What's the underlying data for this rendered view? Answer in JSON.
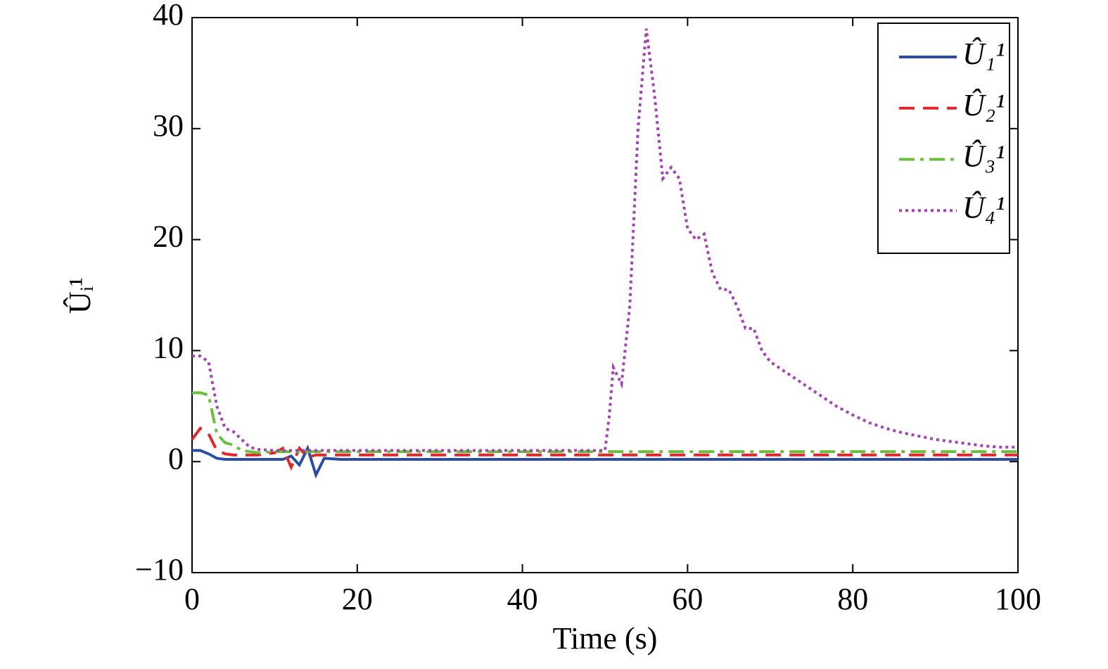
{
  "chart_data": {
    "type": "line",
    "xlabel": "Time (s)",
    "ylabel": "Ûᵢ¹",
    "x": [
      0,
      1,
      2,
      3,
      4,
      5,
      6,
      7,
      8,
      10,
      11,
      12,
      13,
      14,
      15,
      16,
      18,
      20,
      30,
      40,
      50,
      50.5,
      51,
      52,
      53,
      54,
      55,
      56,
      57,
      58,
      59,
      60,
      61,
      62,
      63,
      64,
      65,
      66,
      67,
      68,
      69,
      70,
      72,
      74,
      76,
      78,
      80,
      82,
      84,
      86,
      88,
      90,
      92,
      94,
      96,
      98,
      100
    ],
    "series": [
      {
        "name": "Û₁¹",
        "color": "#2b4ea2",
        "dash": "solid",
        "values": [
          1,
          1,
          0.7,
          0.3,
          0.2,
          0.2,
          0.2,
          0.2,
          0.2,
          0.2,
          0.2,
          0.5,
          -0.3,
          1.2,
          -1.2,
          0.3,
          0.2,
          0.2,
          0.2,
          0.2,
          0.2,
          0.2,
          0.2,
          0.2,
          0.2,
          0.2,
          0.2,
          0.2,
          0.2,
          0.2,
          0.2,
          0.2,
          0.2,
          0.2,
          0.2,
          0.2,
          0.2,
          0.2,
          0.2,
          0.2,
          0.2,
          0.2,
          0.2,
          0.2,
          0.2,
          0.2,
          0.2,
          0.2,
          0.2,
          0.2,
          0.2,
          0.2,
          0.2,
          0.2,
          0.2,
          0.2,
          0.2
        ]
      },
      {
        "name": "Û₂¹",
        "color": "#e0262a",
        "dash": "dashed",
        "values": [
          2,
          3,
          2.5,
          1,
          0.7,
          0.6,
          0.6,
          0.6,
          0.6,
          0.8,
          1.2,
          -0.5,
          1.2,
          0.4,
          0.6,
          0.6,
          0.6,
          0.6,
          0.6,
          0.6,
          0.6,
          0.6,
          0.6,
          0.6,
          0.6,
          0.6,
          0.6,
          0.6,
          0.6,
          0.6,
          0.6,
          0.6,
          0.6,
          0.6,
          0.6,
          0.6,
          0.6,
          0.6,
          0.6,
          0.6,
          0.6,
          0.6,
          0.6,
          0.6,
          0.6,
          0.6,
          0.6,
          0.6,
          0.6,
          0.6,
          0.6,
          0.6,
          0.6,
          0.6,
          0.6,
          0.6,
          0.6
        ]
      },
      {
        "name": "Û₃¹",
        "color": "#6abf3f",
        "dash": "dashdot",
        "values": [
          6.2,
          6.2,
          6,
          2.5,
          1.7,
          1.5,
          1,
          0.9,
          0.8,
          0.9,
          0.9,
          0.9,
          0.9,
          0.9,
          0.9,
          0.9,
          0.9,
          0.9,
          0.9,
          0.9,
          0.9,
          0.9,
          0.9,
          0.9,
          0.9,
          0.9,
          0.9,
          0.9,
          0.9,
          0.9,
          0.9,
          0.9,
          0.9,
          0.9,
          0.9,
          0.9,
          0.9,
          0.9,
          0.9,
          0.9,
          0.9,
          0.9,
          0.9,
          0.9,
          0.9,
          0.9,
          0.9,
          0.9,
          0.9,
          0.9,
          0.9,
          0.9,
          0.9,
          0.9,
          0.9,
          0.9,
          0.9
        ]
      },
      {
        "name": "Û₄¹",
        "color": "#a044b0",
        "dash": "dotted",
        "values": [
          9.5,
          9.5,
          9,
          5,
          3,
          2.7,
          2,
          1.3,
          1.1,
          1,
          1,
          1,
          1,
          1,
          1,
          1,
          1,
          1,
          1,
          1,
          1,
          4,
          8.5,
          7,
          14,
          30,
          39,
          33,
          25.5,
          26.5,
          25.5,
          21,
          20,
          20.5,
          17,
          15.5,
          15.5,
          14,
          12,
          12,
          10,
          9,
          8,
          7,
          6,
          5,
          4.2,
          3.5,
          3,
          2.6,
          2.3,
          2,
          1.8,
          1.6,
          1.4,
          1.3,
          1.3
        ]
      }
    ],
    "xlim": [
      0,
      100
    ],
    "xticks": [
      0,
      20,
      40,
      60,
      80,
      100
    ],
    "ylim": [
      -10,
      40
    ],
    "yticks": [
      {
        "value": -10,
        "label": "−10"
      },
      0,
      10,
      20,
      30,
      40
    ],
    "legend": "upper right",
    "grid": false
  }
}
